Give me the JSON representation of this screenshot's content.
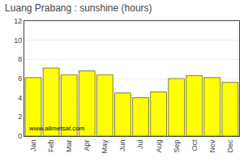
{
  "chart_data": {
    "type": "bar",
    "title": "Luang Prabang : sunshine (hours)",
    "categories": [
      "Jan",
      "Feb",
      "Mar",
      "Apr",
      "May",
      "Jun",
      "Jul",
      "Aug",
      "Sep",
      "Oct",
      "Nov",
      "Dec"
    ],
    "values": [
      6.1,
      7.1,
      6.4,
      6.8,
      6.4,
      4.5,
      4.0,
      4.6,
      6.0,
      6.3,
      6.1,
      5.6
    ],
    "color": "#ffff00",
    "ylim": [
      0,
      12
    ],
    "yticks": [
      0,
      2,
      4,
      6,
      8,
      10,
      12
    ],
    "grid": true,
    "annotations": [
      "www.allmetsat.com"
    ]
  }
}
